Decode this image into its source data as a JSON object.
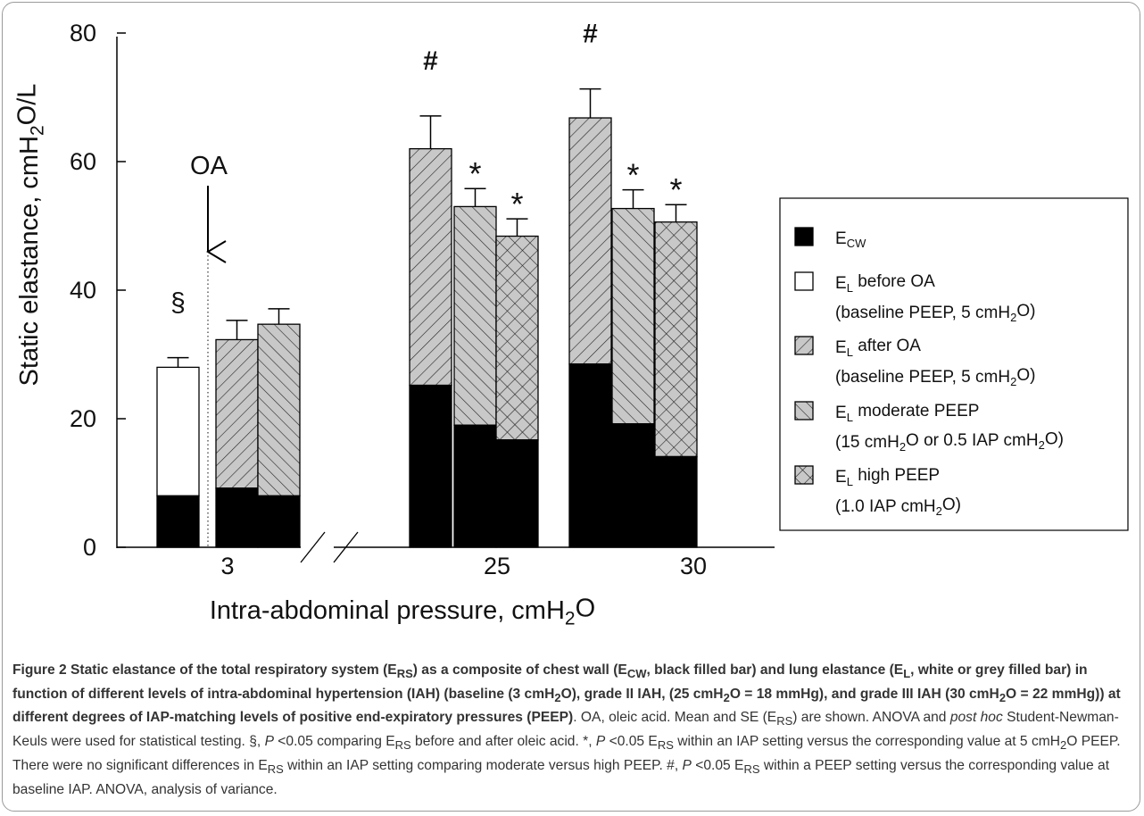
{
  "chart_data": {
    "type": "bar",
    "subtype": "stacked",
    "ylabel": "Static elastance, cmH2O/L",
    "xlabel": "Intra-abdominal pressure, cmH2O",
    "ylim": [
      0,
      80
    ],
    "yticks": [
      0,
      20,
      40,
      60,
      80
    ],
    "axis_break": true,
    "groups": [
      {
        "label": "3",
        "annotation": "§",
        "arrow_label": "OA"
      },
      {
        "label": "25"
      },
      {
        "label": "30"
      }
    ],
    "bars": [
      {
        "group": "3",
        "lung_series": "E_L before OA",
        "E_CW": 8.0,
        "E_RS": 28.0,
        "se": 1.5,
        "mark": "§"
      },
      {
        "group": "3",
        "lung_series": "E_L after OA",
        "E_CW": 9.2,
        "E_RS": 32.3,
        "se": 3.0,
        "mark": ""
      },
      {
        "group": "3",
        "lung_series": "E_L moderate PEEP",
        "E_CW": 8.0,
        "E_RS": 34.7,
        "se": 2.4,
        "mark": ""
      },
      {
        "group": "25",
        "lung_series": "E_L after OA",
        "E_CW": 25.2,
        "E_RS": 62.0,
        "se": 5.1,
        "mark": "#"
      },
      {
        "group": "25",
        "lung_series": "E_L moderate PEEP",
        "E_CW": 19.0,
        "E_RS": 53.0,
        "se": 2.8,
        "mark": "*"
      },
      {
        "group": "25",
        "lung_series": "E_L high PEEP",
        "E_CW": 16.7,
        "E_RS": 48.4,
        "se": 2.7,
        "mark": "*"
      },
      {
        "group": "30",
        "lung_series": "E_L after OA",
        "E_CW": 28.5,
        "E_RS": 66.8,
        "se": 4.5,
        "mark": "#"
      },
      {
        "group": "30",
        "lung_series": "E_L moderate PEEP",
        "E_CW": 19.2,
        "E_RS": 52.7,
        "se": 2.9,
        "mark": "*"
      },
      {
        "group": "30",
        "lung_series": "E_L high PEEP",
        "E_CW": 14.1,
        "E_RS": 50.6,
        "se": 2.7,
        "mark": "*"
      }
    ],
    "legend": {
      "placement": "right",
      "entries": [
        {
          "key": "E_CW",
          "main": "E",
          "sub": "CW",
          "rest": "",
          "line2": "",
          "pattern": "solid-black"
        },
        {
          "key": "E_L before OA",
          "main": "E",
          "sub": "L",
          "rest": " before OA",
          "line2": "(baseline PEEP, 5 cmH2O)",
          "pattern": "white"
        },
        {
          "key": "E_L after OA",
          "main": "E",
          "sub": "L",
          "rest": " after OA",
          "line2": "(baseline PEEP, 5 cmH2O)",
          "pattern": "diagonal-up"
        },
        {
          "key": "E_L moderate PEEP",
          "main": "E",
          "sub": "L",
          "rest": " moderate PEEP",
          "line2": "(15 cmH2O or 0.5 IAP cmH2O)",
          "pattern": "diagonal-down"
        },
        {
          "key": "E_L high PEEP",
          "main": "E",
          "sub": "L",
          "rest": " high PEEP",
          "line2": "(1.0 IAP cmH2O)",
          "pattern": "crosshatch"
        }
      ]
    },
    "colors": {
      "chest_wall": "#000000",
      "lung_fill": "#c8c8c8",
      "before_fill": "#ffffff"
    }
  },
  "caption": {
    "title": "Figure 2 Static elastance of the total respiratory system (ERS) as a composite of chest wall (ECW, black filled bar) and lung elastance (EL, white or grey filled bar) in function of different levels of intra-abdominal hypertension (IAH) (baseline (3 cmH2O), grade II IAH, (25 cmH2O = 18 mmHg), and grade III IAH (30 cmH2O = 22 mmHg)) at different degrees of IAP-matching levels of positive end-expiratory pressures (PEEP)",
    "body": ". OA, oleic acid. Mean and SE (ERS) are shown. ANOVA and post hoc Student-Newman-Keuls were used for statistical testing. §, P <0.05 comparing ERS before and after oleic acid. *, P <0.05 ERS within an IAP setting versus the corresponding value at 5 cmH2O PEEP. There were no significant differences in ERS within an IAP setting comparing moderate versus high PEEP. #, P <0.05 ERS within a PEEP setting versus the corresponding value at baseline IAP. ANOVA, analysis of variance."
  }
}
